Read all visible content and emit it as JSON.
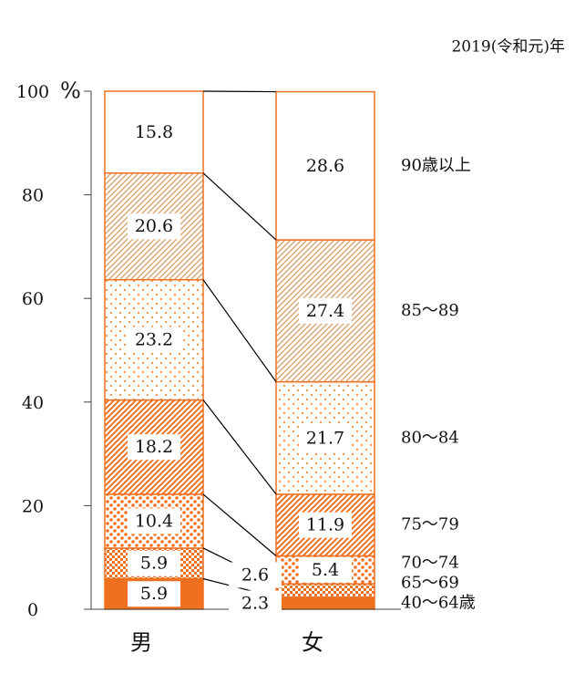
{
  "chart_data": {
    "type": "stacked-bar",
    "subtitle": "2019(令和元)年",
    "y_label": "%",
    "categories": [
      "男",
      "女"
    ],
    "series": [
      {
        "name": "40〜64歳",
        "color": "#f07020",
        "values": [
          5.9,
          2.3
        ]
      },
      {
        "name": "65〜69",
        "color": "#f07020",
        "values": [
          5.9,
          2.6
        ]
      },
      {
        "name": "70〜74",
        "color": "#f07020",
        "values": [
          10.4,
          5.4
        ]
      },
      {
        "name": "75〜79",
        "color": "#f07020",
        "values": [
          18.2,
          11.9
        ]
      },
      {
        "name": "80〜84",
        "color": "#f09a50",
        "values": [
          23.2,
          21.7
        ]
      },
      {
        "name": "85〜89",
        "color": "#d8a470",
        "values": [
          20.6,
          27.4
        ]
      },
      {
        "name": "90歳以上",
        "color": "#f07020",
        "values": [
          15.8,
          28.6
        ]
      }
    ],
    "ylim": [
      0,
      100
    ],
    "yticks": [
      0,
      20,
      40,
      60,
      80,
      100
    ]
  }
}
